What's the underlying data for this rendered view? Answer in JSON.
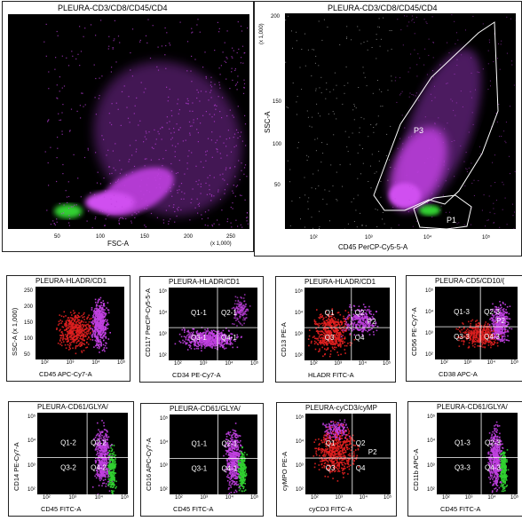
{
  "top_left": {
    "title": "PLEURA-CD3/CD8/CD45/CD4",
    "xlabel": "FSC-A",
    "xticks": [
      "50",
      "100",
      "150",
      "200",
      "250"
    ],
    "xunit": "(x 1,000)"
  },
  "top_right": {
    "title": "PLEURA-CD3/CD8/CD45/CD4",
    "xlabel": "CD45 PerCP-Cy5-5-A",
    "ylabel": "SSC-A",
    "yunit": "(x 1,000)",
    "xticks": [
      "10²",
      "10³",
      "10⁴",
      "10⁵"
    ],
    "yticks": [
      "200",
      "150",
      "100",
      "50"
    ],
    "gates": [
      "P3",
      "P1"
    ]
  },
  "row2": [
    {
      "title": "PLEURA-HLADR/CD1",
      "xlabel": "CD45 APC-Cy7-A",
      "ylabel": "SSC-A (x 1,000)",
      "quads": []
    },
    {
      "title": "PLEURA-HLADR/CD1",
      "xlabel": "CD34 PE-Cy7-A",
      "ylabel": "CD117 PerCP-Cy5-5-A",
      "quads": [
        "Q1-1",
        "Q2-1",
        "Q3-1",
        "Q4-1"
      ]
    },
    {
      "title": "PLEURA-HLADR/CD1",
      "xlabel": "HLADR FITC-A",
      "ylabel": "CD13 PE-A",
      "quads": [
        "Q1",
        "Q2",
        "Q3",
        "Q4"
      ],
      "extra": "P2"
    },
    {
      "title": "PLEURA-CD5/CD10/(",
      "xlabel": "CD38 APC-A",
      "ylabel": "CD56 PE-Cy7-A",
      "quads": [
        "Q1-3",
        "Q2-3",
        "Q3-3",
        "Q4-3"
      ],
      "extra": "P2"
    }
  ],
  "row3": [
    {
      "title": "PLEURA-CD61/GLYA/",
      "xlabel": "CD45 FITC-A",
      "ylabel": "CD14 PE-Cy7-A",
      "quads": [
        "Q1-2",
        "Q2-2",
        "Q3-2",
        "Q4-2"
      ]
    },
    {
      "title": "PLEURA-CD61/GLYA/",
      "xlabel": "CD45 FITC-A",
      "ylabel": "CD16 APC-Cy7-A",
      "quads": [
        "Q1-1",
        "Q2-1",
        "Q3-1",
        "Q4-1"
      ]
    },
    {
      "title": "PLEURA-cyCD3/cyMP",
      "xlabel": "cyCD3 FITC-A",
      "ylabel": "cyMPO PE-A",
      "quads": [
        "Q1",
        "Q2",
        "Q3",
        "Q4"
      ],
      "extra": "P2"
    },
    {
      "title": "PLEURA-CD61/GLYA/",
      "xlabel": "CD45 FITC-A",
      "ylabel": "CD11b APC-A",
      "quads": [
        "Q1-3",
        "Q2-3",
        "Q3-3",
        "Q4-3"
      ]
    }
  ],
  "small_ticks": {
    "x": [
      "10²",
      "10³",
      "10⁴",
      "10⁵"
    ],
    "y": [
      "10⁵",
      "10⁴",
      "10³",
      "10²"
    ],
    "ssc": [
      "250",
      "200",
      "150",
      "100",
      "50"
    ],
    "x_apc": [
      "10²",
      "10³",
      "10⁴",
      "10⁵"
    ]
  },
  "colors": {
    "magenta": "#c040e0",
    "green": "#30d030",
    "red": "#e02020",
    "background": "#000000"
  }
}
